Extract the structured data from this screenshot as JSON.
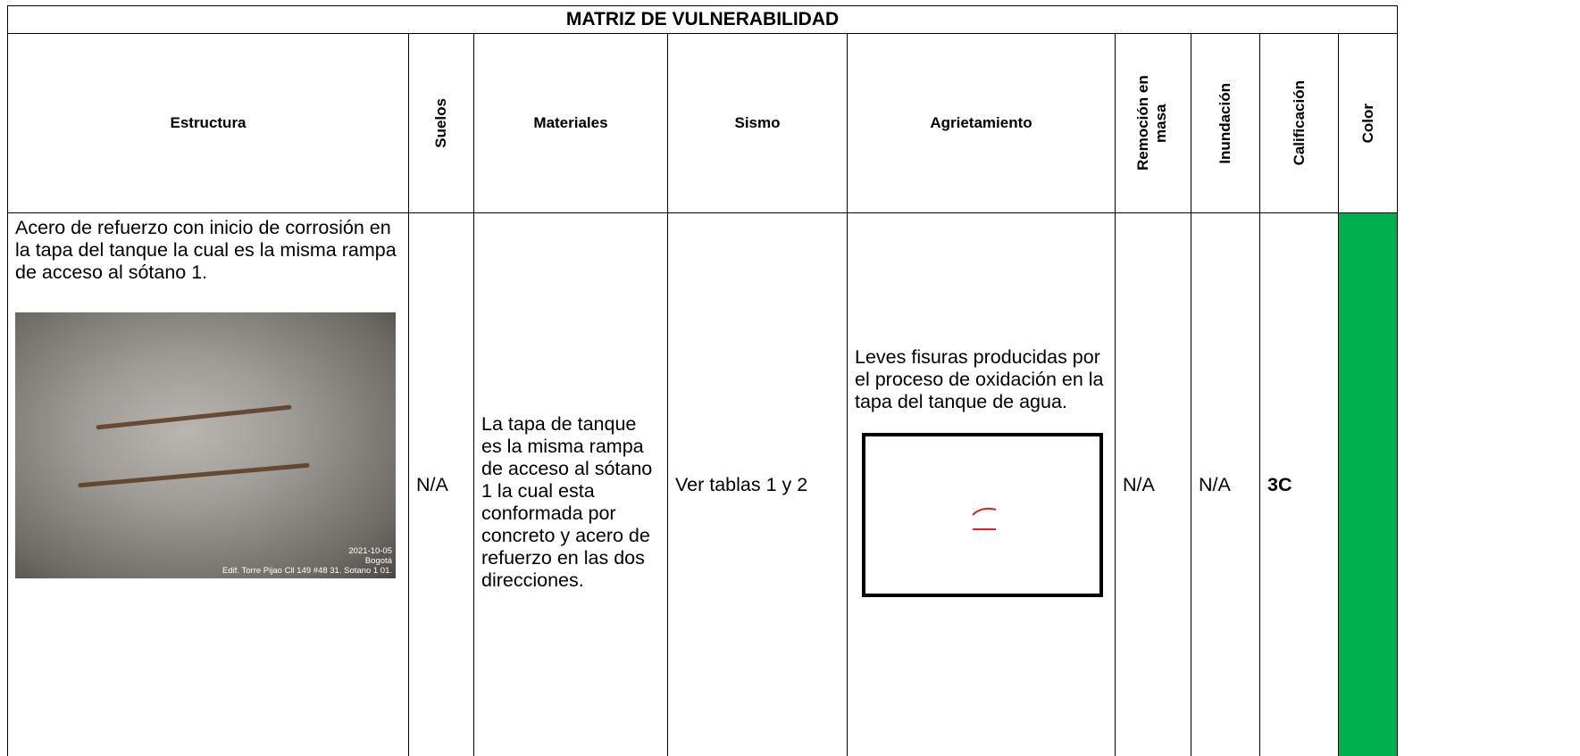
{
  "header": {
    "title": "MATRIZ DE VULNERABILIDAD"
  },
  "table": {
    "columns": [
      "Estructura",
      "Suelos",
      "Materiales",
      "Sismo",
      "Agrietamiento",
      "Remoción en masa",
      "Inundación",
      "Calificación",
      "Color"
    ],
    "rows": [
      {
        "estructura": "Acero de refuerzo con inicio de corrosión en la tapa del tanque la cual es la misma rampa de acceso al sótano 1.",
        "photo_caption": [
          "2021-10-05",
          "Bogotá",
          "Edif. Torre Pijao Cll 149 #48 31. Sotano 1 01."
        ],
        "suelos": "N/A",
        "materiales": "La tapa de tanque es la misma rampa de acceso al sótano 1 la cual esta conformada por concreto y acero de refuerzo en las dos direcciones.",
        "sismo": "Ver tablas 1 y 2",
        "agrietamiento": "Leves fisuras producidas por el proceso de oxidación en la tapa del tanque de agua.",
        "remocion": "N/A",
        "inundacion": "N/A",
        "calificacion": "3C",
        "color": "#00b050"
      }
    ]
  }
}
